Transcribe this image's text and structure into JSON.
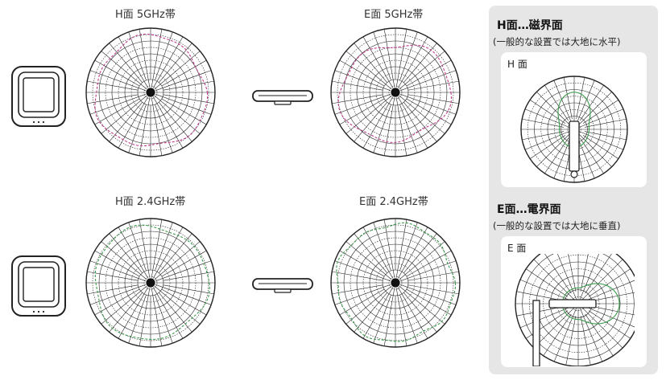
{
  "main": {
    "labels": {
      "h5": "H面 5GHz帯",
      "e5": "E面 5GHz帯",
      "h24": "H面 2.4GHz帯",
      "e24": "E面 2.4GHz帯"
    },
    "colors": {
      "band_5ghz": "#c03a8a",
      "band_24ghz": "#3a9a4a",
      "grid": "#222222"
    }
  },
  "side": {
    "h_title": "H面…磁界面",
    "h_note": "(一般的な設置では大地に水平)",
    "h_card_label": "H 面",
    "e_title": "E面…電界面",
    "e_note": "(一般的な設置では大地に垂直)",
    "e_card_label": "E 面"
  }
}
